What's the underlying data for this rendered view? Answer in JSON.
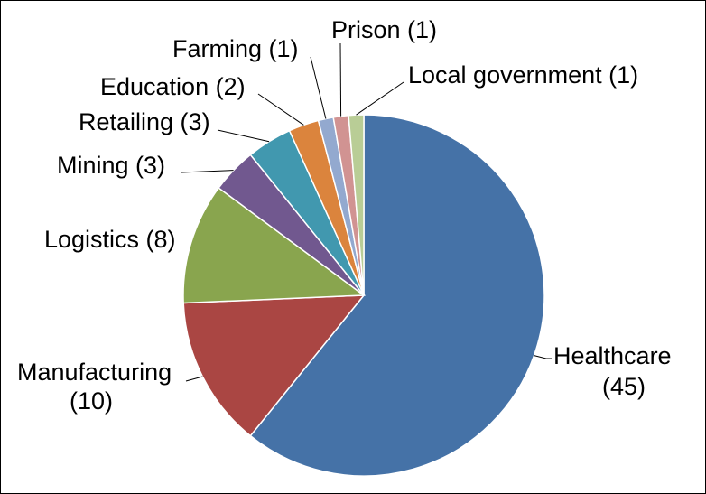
{
  "chart_data": {
    "type": "pie",
    "title": "",
    "start_angle_deg": 0,
    "direction": "clockwise",
    "legend": "none",
    "slices": [
      {
        "label": "Healthcare",
        "value": 45,
        "label_text": "Healthcare",
        "value_text": "(45)",
        "color": "#4572a7"
      },
      {
        "label": "Manufacturing",
        "value": 10,
        "label_text": "Manufacturing",
        "value_text": "(10)",
        "color": "#aa4643"
      },
      {
        "label": "Logistics",
        "value": 8,
        "label_text": "Logistics (8)",
        "value_text": "",
        "color": "#89a54e"
      },
      {
        "label": "Mining",
        "value": 3,
        "label_text": "Mining (3)",
        "value_text": "",
        "color": "#71588f"
      },
      {
        "label": "Retailing",
        "value": 3,
        "label_text": "Retailing (3)",
        "value_text": "",
        "color": "#4198af"
      },
      {
        "label": "Education",
        "value": 2,
        "label_text": "Education (2)",
        "value_text": "",
        "color": "#db843d"
      },
      {
        "label": "Farming",
        "value": 1,
        "label_text": "Farming (1)",
        "value_text": "",
        "color": "#93a9cf"
      },
      {
        "label": "Prison",
        "value": 1,
        "label_text": "Prison (1)",
        "value_text": "",
        "color": "#d19392"
      },
      {
        "label": "Local government",
        "value": 1,
        "label_text": "Local government (1)",
        "value_text": "",
        "color": "#b9cd96"
      }
    ]
  }
}
